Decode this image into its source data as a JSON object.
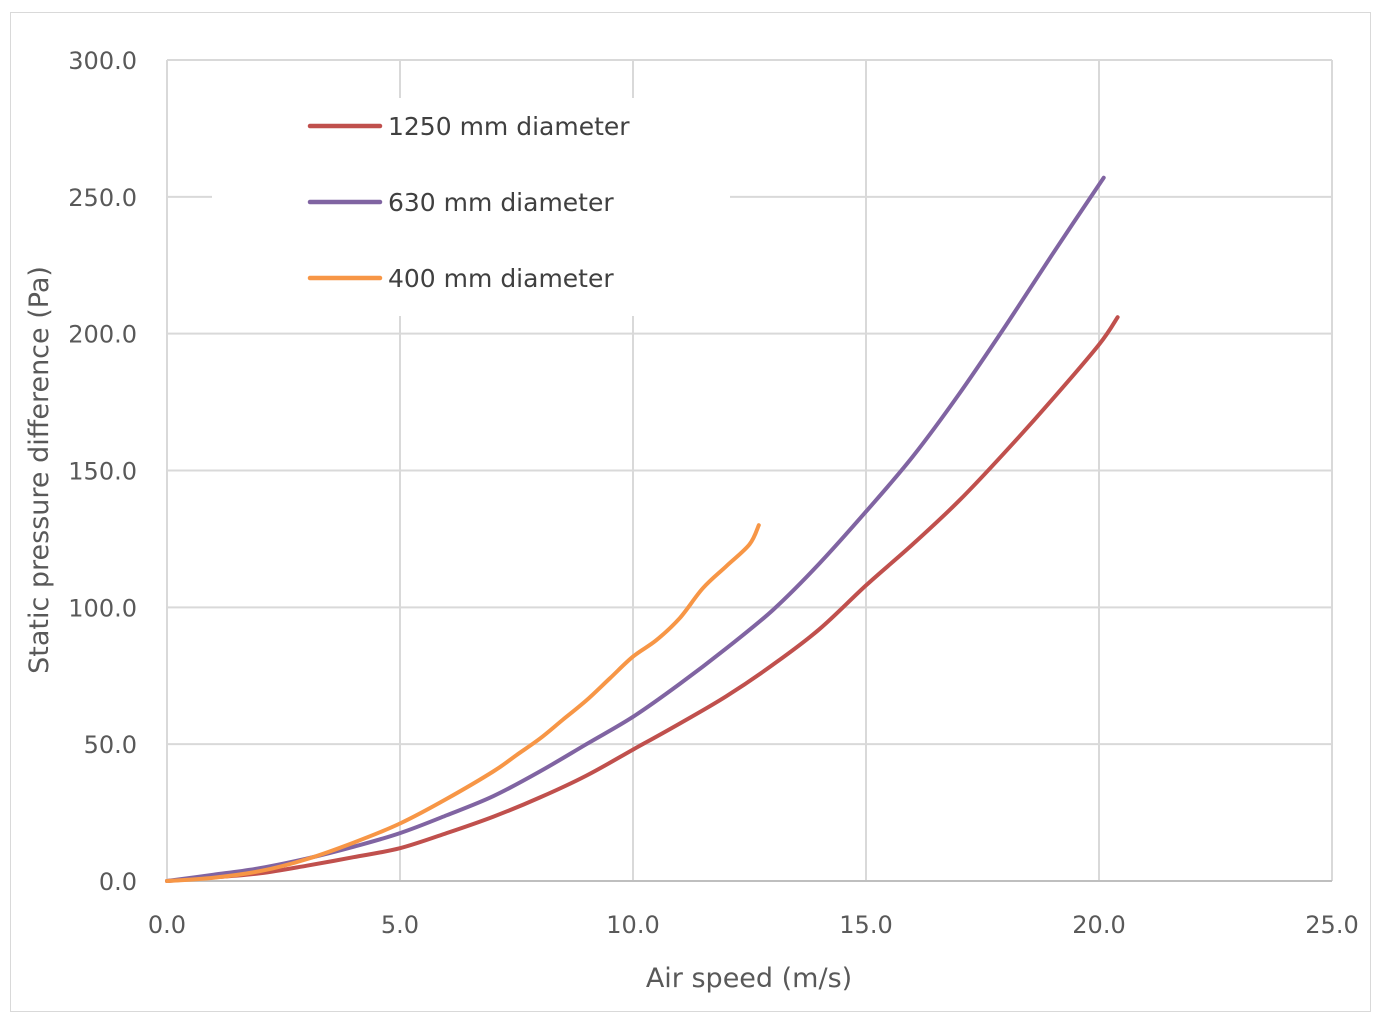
{
  "chart_data": {
    "type": "line",
    "title": "",
    "xlabel": "Air speed (m/s)",
    "ylabel": "Static pressure difference (Pa)",
    "xlim": [
      0,
      25
    ],
    "ylim": [
      0,
      300
    ],
    "x_ticks": [
      "0.0",
      "5.0",
      "10.0",
      "15.0",
      "20.0",
      "25.0"
    ],
    "y_ticks": [
      "0.0",
      "50.0",
      "100.0",
      "150.0",
      "200.0",
      "250.0",
      "300.0"
    ],
    "grid": true,
    "legend_position": "top-left",
    "series": [
      {
        "name": "1250 mm diameter",
        "color": "#c0504d",
        "points": [
          [
            0,
            0
          ],
          [
            1,
            1.3
          ],
          [
            2,
            2.8
          ],
          [
            3,
            5.6
          ],
          [
            4,
            8.7
          ],
          [
            5,
            12
          ],
          [
            6,
            17.5
          ],
          [
            7,
            23.5
          ],
          [
            8,
            30.5
          ],
          [
            9,
            38.5
          ],
          [
            10,
            48
          ],
          [
            11,
            57.5
          ],
          [
            12,
            67.5
          ],
          [
            13,
            79
          ],
          [
            14,
            92
          ],
          [
            15,
            108
          ],
          [
            16,
            123
          ],
          [
            17,
            139
          ],
          [
            18,
            157
          ],
          [
            19,
            176
          ],
          [
            20,
            196
          ],
          [
            20.4,
            206
          ]
        ]
      },
      {
        "name": "630 mm diameter",
        "color": "#8064a2",
        "points": [
          [
            0,
            0
          ],
          [
            1,
            2.3
          ],
          [
            2,
            4.7
          ],
          [
            3,
            8.2
          ],
          [
            4,
            12.5
          ],
          [
            5,
            17.5
          ],
          [
            6,
            24
          ],
          [
            7,
            31
          ],
          [
            8,
            40
          ],
          [
            9,
            50
          ],
          [
            10,
            60
          ],
          [
            11,
            72
          ],
          [
            12,
            85
          ],
          [
            13,
            99
          ],
          [
            14,
            116
          ],
          [
            15,
            135
          ],
          [
            16,
            155
          ],
          [
            17,
            178
          ],
          [
            18,
            203
          ],
          [
            19,
            229
          ],
          [
            20.1,
            257
          ]
        ]
      },
      {
        "name": "400 mm diameter",
        "color": "#f79646",
        "points": [
          [
            0,
            0
          ],
          [
            1,
            1.2
          ],
          [
            2,
            3.6
          ],
          [
            3,
            8
          ],
          [
            4,
            14
          ],
          [
            5,
            21
          ],
          [
            6,
            30
          ],
          [
            7,
            40
          ],
          [
            7.5,
            46
          ],
          [
            8,
            52
          ],
          [
            8.5,
            59
          ],
          [
            9,
            66
          ],
          [
            9.5,
            74
          ],
          [
            10,
            82
          ],
          [
            10.5,
            88
          ],
          [
            11,
            96
          ],
          [
            11.5,
            107
          ],
          [
            12,
            115
          ],
          [
            12.5,
            123
          ],
          [
            12.7,
            130
          ]
        ]
      }
    ]
  }
}
